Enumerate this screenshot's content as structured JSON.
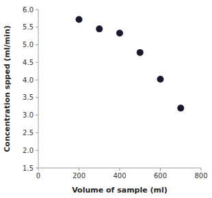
{
  "chart_data": {
    "type": "scatter",
    "xlabel": "Volume of sample (ml)",
    "ylabel": "Concentration spped (ml/min)",
    "x": [
      200,
      300,
      400,
      500,
      600,
      700
    ],
    "values": [
      5.72,
      5.45,
      5.33,
      4.78,
      4.02,
      3.2
    ],
    "color": "#1a1a2e",
    "xlim": [
      0,
      800
    ],
    "ylim": [
      1.5,
      6.0
    ],
    "xticks": [
      0,
      200,
      400,
      600,
      800
    ],
    "yticks": [
      1.5,
      {
        "value": 2.0,
        "label": "2.0"
      },
      2.5,
      {
        "value": 3.0,
        "label": "3.0"
      },
      3.5,
      {
        "value": 4.0,
        "label": "4.0"
      },
      4.5,
      {
        "value": 5.0,
        "label": "5.0"
      },
      5.5,
      {
        "value": 6.0,
        "label": "6.0"
      }
    ],
    "grid": false
  }
}
